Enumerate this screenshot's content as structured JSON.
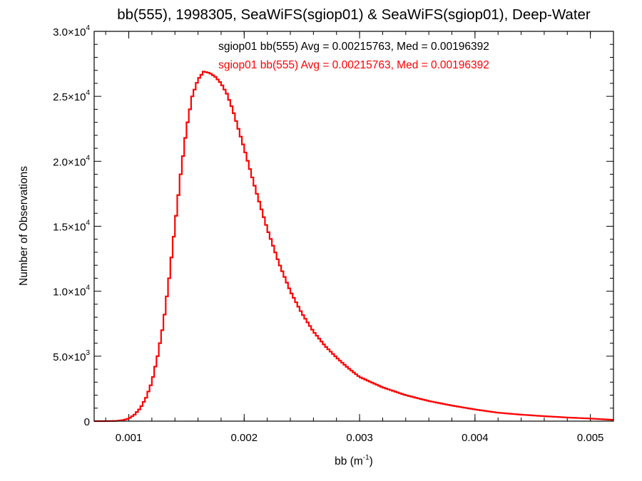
{
  "chart_data": {
    "type": "line",
    "title": "bb(555), 1998305, SeaWiFS(sgiop01) & SeaWiFS(sgiop01), Deep-Water",
    "xlabel_main": "bb (m",
    "xlabel_exp": "-1",
    "xlabel_close": ")",
    "ylabel": "Number of Observations",
    "xlim": [
      0.0007,
      0.0052
    ],
    "ylim": [
      0,
      30000
    ],
    "x_ticks": [
      {
        "value": 0.001,
        "label": "0.001"
      },
      {
        "value": 0.002,
        "label": "0.002"
      },
      {
        "value": 0.003,
        "label": "0.003"
      },
      {
        "value": 0.004,
        "label": "0.004"
      },
      {
        "value": 0.005,
        "label": "0.005"
      }
    ],
    "y_ticks": [
      {
        "value": 0,
        "mant": "0",
        "exp": ""
      },
      {
        "value": 5000,
        "mant": "5.0×10",
        "exp": "3"
      },
      {
        "value": 10000,
        "mant": "1.0×10",
        "exp": "4"
      },
      {
        "value": 15000,
        "mant": "1.5×10",
        "exp": "4"
      },
      {
        "value": 20000,
        "mant": "2.0×10",
        "exp": "4"
      },
      {
        "value": 25000,
        "mant": "2.5×10",
        "exp": "4"
      },
      {
        "value": 30000,
        "mant": "3.0×10",
        "exp": "4"
      }
    ],
    "annotations": [
      {
        "text": "sgiop01 bb(555) Avg = 0.00215763, Med = 0.00196392",
        "color": "#000000"
      },
      {
        "text": "sgiop01 bb(555) Avg = 0.00215763, Med = 0.00196392",
        "color": "#ff0000"
      }
    ],
    "series": [
      {
        "color": "#ff0000",
        "style": "histogram-step",
        "x": [
          0.0007,
          0.0008,
          0.0009,
          0.00095,
          0.001,
          0.00105,
          0.0011,
          0.00115,
          0.0012,
          0.00125,
          0.0013,
          0.00135,
          0.0014,
          0.00145,
          0.0015,
          0.00155,
          0.0016,
          0.00165,
          0.0017,
          0.00175,
          0.0018,
          0.00185,
          0.0019,
          0.002,
          0.0021,
          0.0022,
          0.0023,
          0.0024,
          0.0025,
          0.0026,
          0.0027,
          0.0028,
          0.0029,
          0.003,
          0.0032,
          0.0034,
          0.0036,
          0.0038,
          0.004,
          0.0042,
          0.0044,
          0.0046,
          0.0048,
          0.005,
          0.0052
        ],
        "y": [
          0,
          0,
          20,
          80,
          200,
          500,
          1000,
          1800,
          3000,
          5000,
          7500,
          11000,
          15000,
          19000,
          22500,
          25000,
          26300,
          26900,
          26800,
          26500,
          26000,
          25200,
          24000,
          21000,
          17800,
          14800,
          12200,
          10000,
          8300,
          6900,
          5800,
          4900,
          4100,
          3400,
          2600,
          2000,
          1550,
          1200,
          900,
          650,
          500,
          380,
          280,
          200,
          100
        ]
      }
    ]
  }
}
